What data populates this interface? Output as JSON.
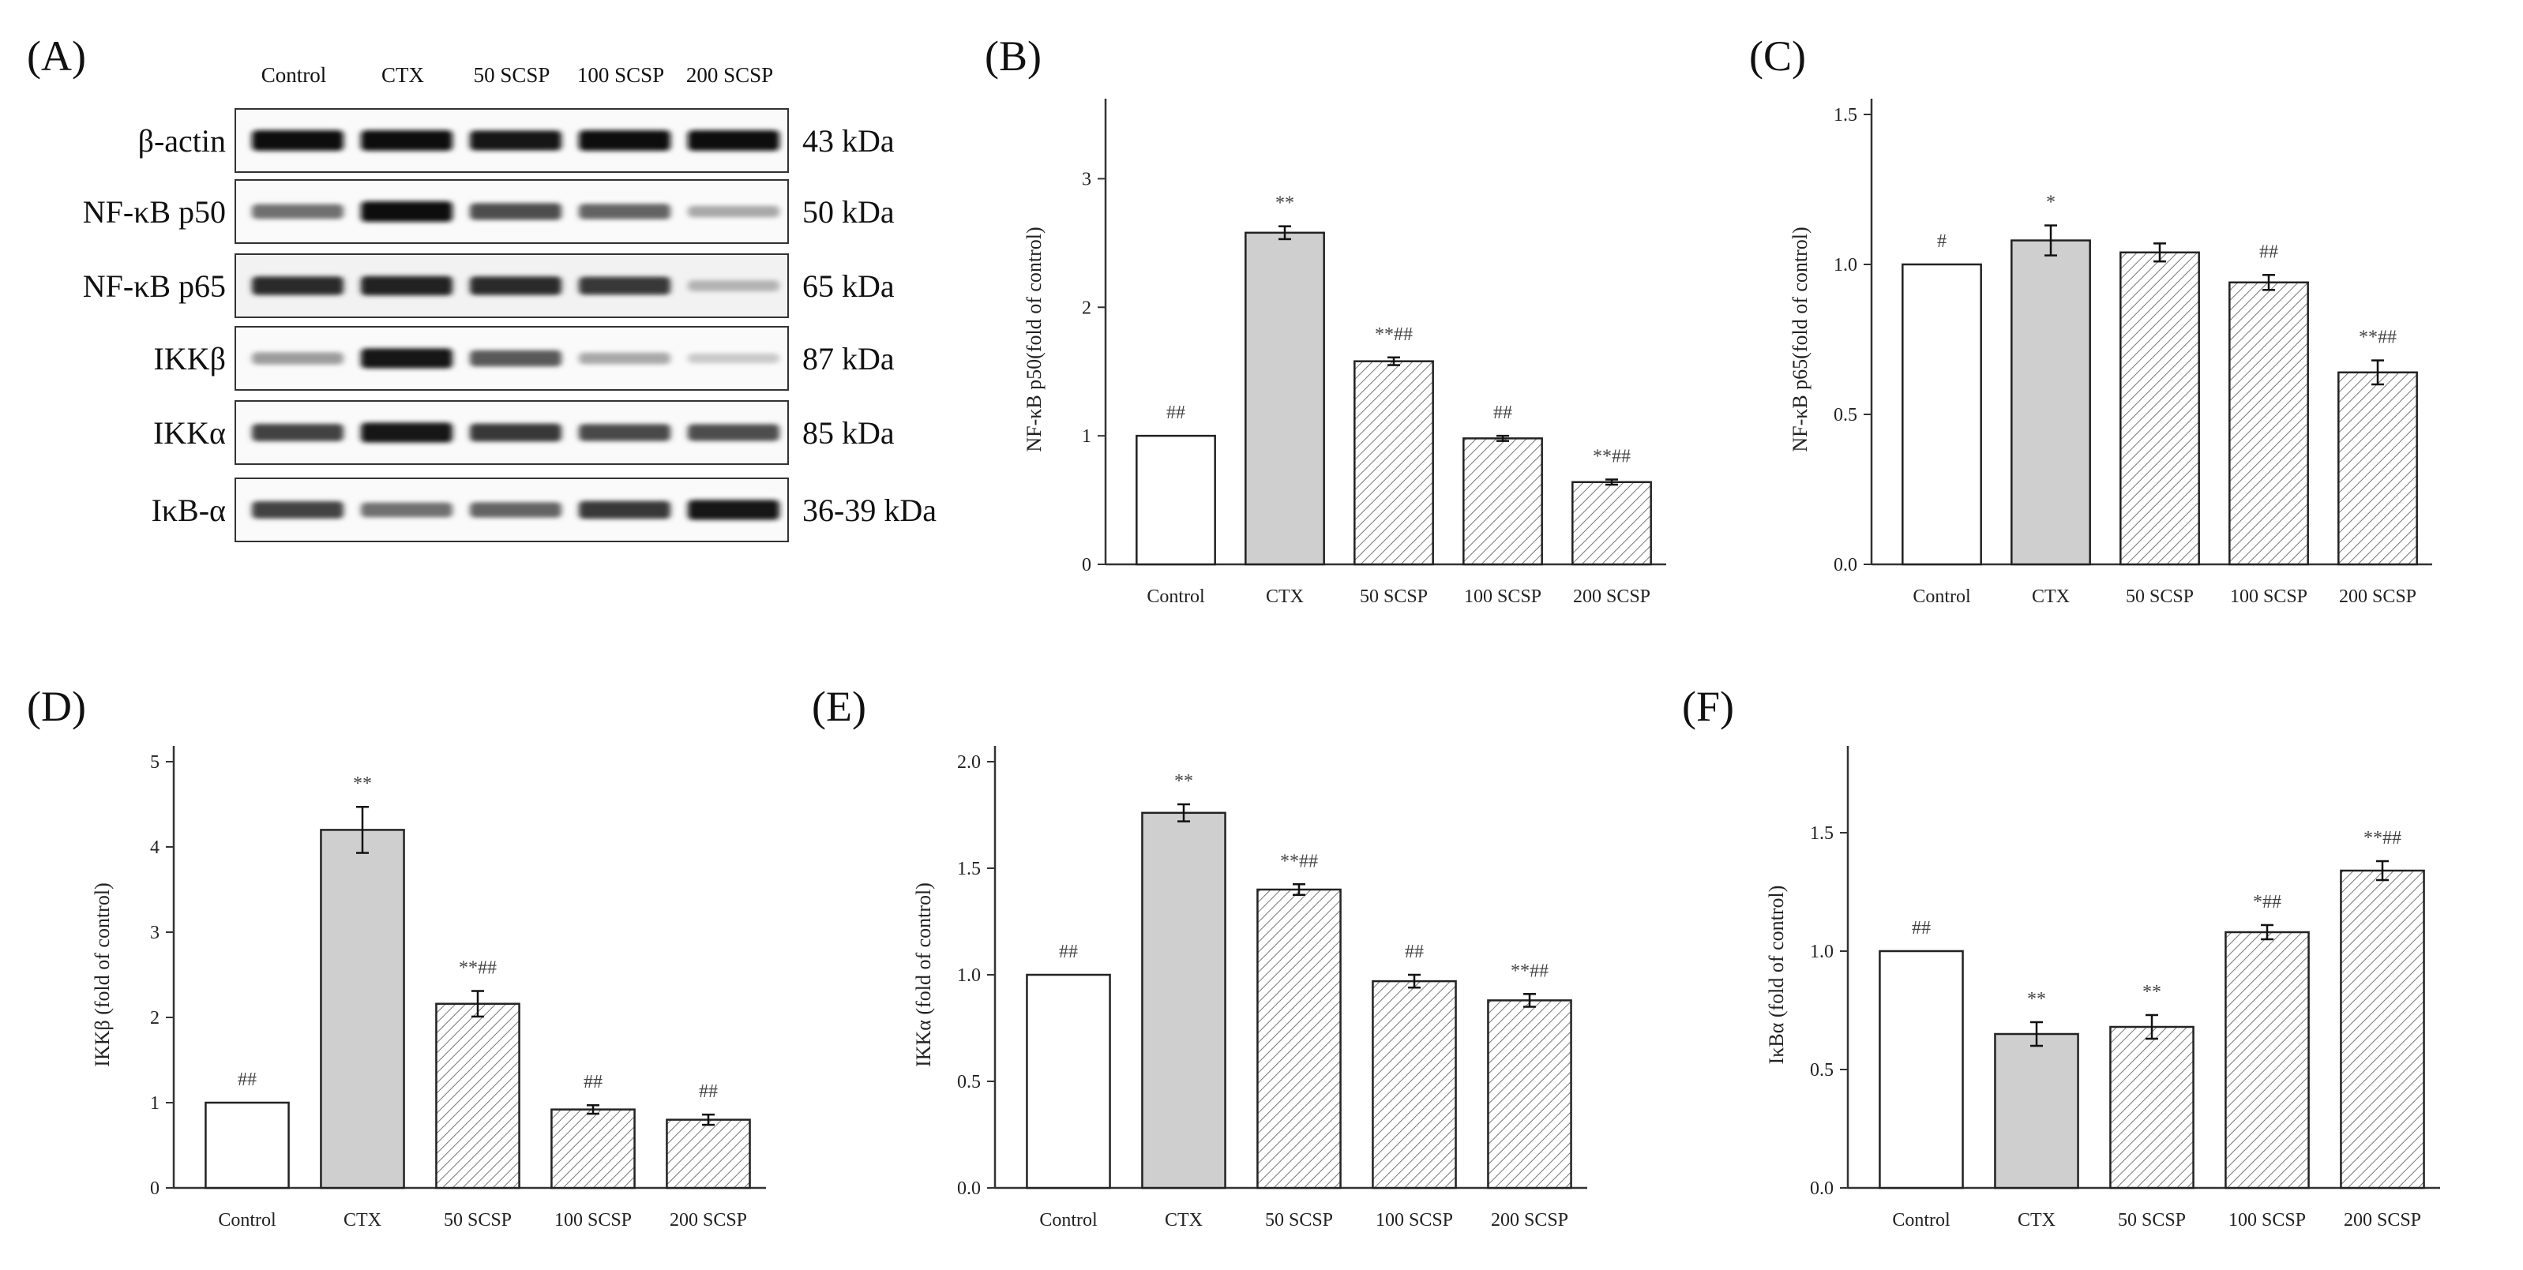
{
  "figure": {
    "panel_letters": [
      "(A)",
      "(B)",
      "(C)",
      "(D)",
      "(E)",
      "(F)"
    ]
  },
  "western_blot": {
    "lanes": [
      "Control",
      "CTX",
      "50 SCSP",
      "100 SCSP",
      "200 SCSP"
    ],
    "rows": [
      {
        "protein": "β-actin",
        "mw": "43 kDa",
        "intensity": [
          1.0,
          1.0,
          0.95,
          1.0,
          1.0
        ]
      },
      {
        "protein": "NF-κB p50",
        "mw": "50 kDa",
        "intensity": [
          0.55,
          1.0,
          0.7,
          0.6,
          0.3
        ]
      },
      {
        "protein": "NF-κB p65",
        "mw": "65 kDa",
        "intensity": [
          0.85,
          0.9,
          0.85,
          0.8,
          0.25
        ]
      },
      {
        "protein": "IKKβ",
        "mw": "87 kDa",
        "intensity": [
          0.35,
          0.95,
          0.65,
          0.3,
          0.15
        ]
      },
      {
        "protein": "IKKα",
        "mw": "85 kDa",
        "intensity": [
          0.75,
          0.95,
          0.8,
          0.72,
          0.7
        ]
      },
      {
        "protein": "IκB-α",
        "mw": "36-39 kDa",
        "intensity": [
          0.75,
          0.55,
          0.6,
          0.8,
          0.95
        ]
      }
    ]
  },
  "chart_data": [
    {
      "panel": "(B)",
      "type": "bar",
      "categories": [
        "Control",
        "CTX",
        "50 SCSP",
        "100 SCSP",
        "200 SCSP"
      ],
      "values": [
        1.0,
        2.58,
        1.58,
        0.98,
        0.64
      ],
      "errors": [
        0.0,
        0.05,
        0.03,
        0.02,
        0.02
      ],
      "annotations": [
        "##",
        "**",
        "**##",
        "##",
        "**##"
      ],
      "fills": [
        "white",
        "gray",
        "hatch",
        "hatch",
        "hatch"
      ],
      "ylabel": "NF-κB p50(fold of control)",
      "ylim": [
        0,
        3.5
      ],
      "yticks": [
        0,
        1,
        2,
        3
      ],
      "ytick_labels": [
        "0",
        "1",
        "2",
        "3"
      ]
    },
    {
      "panel": "(C)",
      "type": "bar",
      "categories": [
        "Control",
        "CTX",
        "50 SCSP",
        "100 SCSP",
        "200 SCSP"
      ],
      "values": [
        1.0,
        1.08,
        1.04,
        0.94,
        0.64
      ],
      "errors": [
        0.0,
        0.05,
        0.03,
        0.025,
        0.04
      ],
      "annotations": [
        "#",
        "*",
        "",
        "##",
        "**##"
      ],
      "fills": [
        "white",
        "gray",
        "hatch",
        "hatch",
        "hatch"
      ],
      "ylabel": "NF-κB p65(fold of control)",
      "ylim": [
        0,
        1.5
      ],
      "yticks": [
        0,
        0.5,
        1.0,
        1.5
      ],
      "ytick_labels": [
        "0.0",
        "0.5",
        "1.0",
        "1.5"
      ]
    },
    {
      "panel": "(D)",
      "type": "bar",
      "categories": [
        "Control",
        "CTX",
        "50 SCSP",
        "100 SCSP",
        "200 SCSP"
      ],
      "values": [
        1.0,
        4.2,
        2.16,
        0.92,
        0.8
      ],
      "errors": [
        0.0,
        0.27,
        0.15,
        0.05,
        0.06
      ],
      "annotations": [
        "##",
        "**",
        "**##",
        "##",
        "##"
      ],
      "fills": [
        "white",
        "gray",
        "hatch",
        "hatch",
        "hatch"
      ],
      "ylabel": "IKKβ (fold of control)",
      "ylim": [
        0,
        5
      ],
      "yticks": [
        0,
        1,
        2,
        3,
        4,
        5
      ],
      "ytick_labels": [
        "0",
        "1",
        "2",
        "3",
        "4",
        "5"
      ]
    },
    {
      "panel": "(E)",
      "type": "bar",
      "categories": [
        "Control",
        "CTX",
        "50 SCSP",
        "100 SCSP",
        "200 SCSP"
      ],
      "values": [
        1.0,
        1.76,
        1.4,
        0.97,
        0.88
      ],
      "errors": [
        0.0,
        0.04,
        0.025,
        0.03,
        0.03
      ],
      "annotations": [
        "##",
        "**",
        "**##",
        "##",
        "**##"
      ],
      "fills": [
        "white",
        "gray",
        "hatch",
        "hatch",
        "hatch"
      ],
      "ylabel": "IKKα (fold of control)",
      "ylim": [
        0,
        2.0
      ],
      "yticks": [
        0,
        0.5,
        1.0,
        1.5,
        2.0
      ],
      "ytick_labels": [
        "0.0",
        "0.5",
        "1.0",
        "1.5",
        "2.0"
      ]
    },
    {
      "panel": "(F)",
      "type": "bar",
      "categories": [
        "Control",
        "CTX",
        "50 SCSP",
        "100 SCSP",
        "200 SCSP"
      ],
      "values": [
        1.0,
        0.65,
        0.68,
        1.08,
        1.34
      ],
      "errors": [
        0.0,
        0.05,
        0.05,
        0.03,
        0.04
      ],
      "annotations": [
        "##",
        "**",
        "**",
        "*##",
        "**##"
      ],
      "fills": [
        "white",
        "gray",
        "hatch",
        "hatch",
        "hatch"
      ],
      "ylabel": "IκBα (fold of control)",
      "ylim": [
        0,
        1.8
      ],
      "yticks": [
        0,
        0.5,
        1.0,
        1.5
      ],
      "ytick_labels": [
        "0.0",
        "0.5",
        "1.0",
        "1.5"
      ]
    }
  ]
}
